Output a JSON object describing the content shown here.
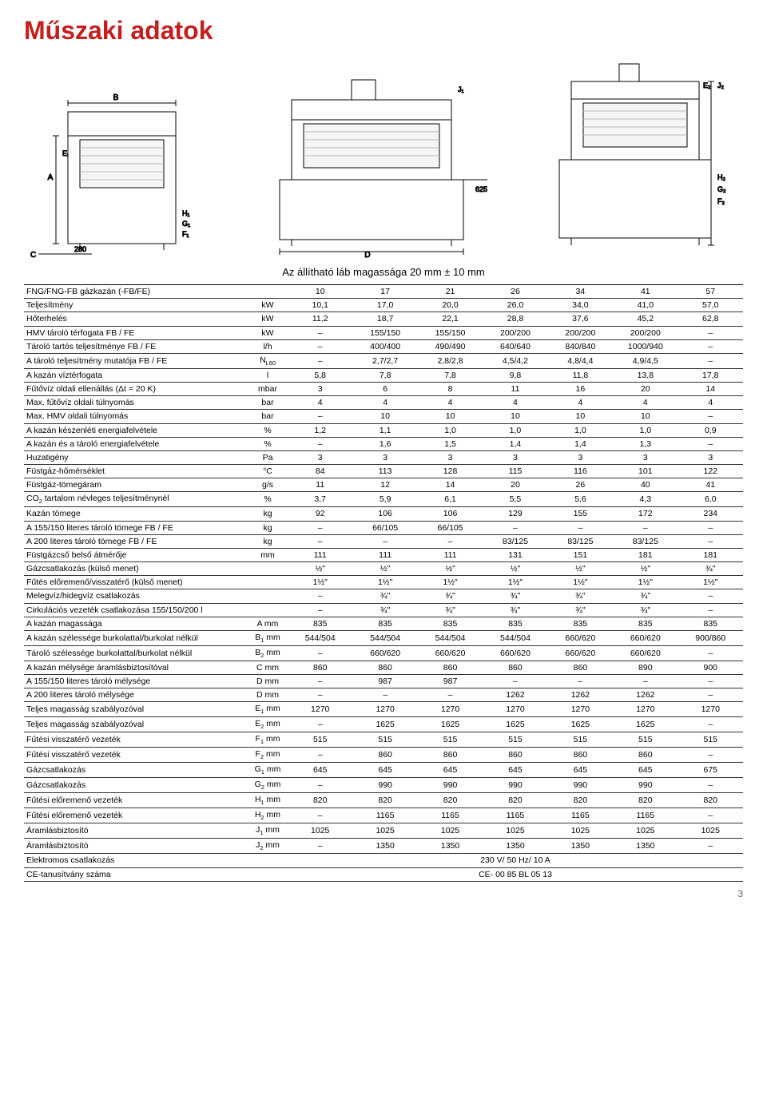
{
  "title": "Műszaki adatok",
  "caption": "Az állítható láb magassága 20 mm ± 10 mm",
  "page_number": "3",
  "diagram_labels": {
    "left": {
      "A": "A",
      "B": "B",
      "C": "C",
      "E1": "E₁",
      "G1": "G₁",
      "H1": "H₁",
      "F1": "F₁",
      "val280": "280"
    },
    "mid": {
      "D": "D",
      "J1": "J₁",
      "val625": "625"
    },
    "right": {
      "E2": "E₂",
      "J2": "J₂",
      "H2": "H₂",
      "G2": "G₂",
      "F2": "F₂"
    }
  },
  "header_row": [
    "FNG/FNG-FB gázkazán (-FB/FE)",
    "",
    "10",
    "17",
    "21",
    "26",
    "34",
    "41",
    "57"
  ],
  "rows": [
    [
      "Teljesítmény",
      "kW",
      "10,1",
      "17,0",
      "20,0",
      "26,0",
      "34,0",
      "41,0",
      "57,0"
    ],
    [
      "Hőterhelés",
      "kW",
      "11,2",
      "18,7",
      "22,1",
      "28,8",
      "37,6",
      "45,2",
      "62,8"
    ],
    [
      "HMV tároló térfogata FB / FE",
      "kW",
      "–",
      "155/150",
      "155/150",
      "200/200",
      "200/200",
      "200/200",
      "–"
    ],
    [
      "Tároló tartós teljesítménye FB / FE",
      "l/h",
      "–",
      "400/400",
      "490/490",
      "640/640",
      "840/840",
      "1000/940",
      "–"
    ],
    [
      "A tároló teljesítmény mutatója FB / FE",
      "N<sub>L60</sub>",
      "–",
      "2,7/2,7",
      "2,8/2,8",
      "4,5/4,2",
      "4,8/4,4",
      "4,9/4,5",
      "–"
    ],
    [
      "A kazán víztérfogata",
      "l",
      "5,8",
      "7,8",
      "7,8",
      "9,8",
      "11,8",
      "13,8",
      "17,8"
    ],
    [
      "Fűtővíz oldali ellenállás (Δt = 20 K)",
      "mbar",
      "3",
      "6",
      "8",
      "11",
      "16",
      "20",
      "14"
    ],
    [
      "Max. fűtővíz oldali túlnyomás",
      "bar",
      "4",
      "4",
      "4",
      "4",
      "4",
      "4",
      "4"
    ],
    [
      "Max. HMV oldali túlnyomás",
      "bar",
      "–",
      "10",
      "10",
      "10",
      "10",
      "10",
      "–"
    ],
    [
      "A kazán készenléti energiafelvétele",
      "%",
      "1,2",
      "1,1",
      "1,0",
      "1,0",
      "1,0",
      "1,0",
      "0,9"
    ],
    [
      "A kazán és a tároló energiafelvétele",
      "%",
      "–",
      "1,6",
      "1,5",
      "1,4",
      "1,4",
      "1,3",
      "–"
    ],
    [
      "Huzatigény",
      "Pa",
      "3",
      "3",
      "3",
      "3",
      "3",
      "3",
      "3"
    ],
    [
      "Füstgáz-hőmérséklet",
      "°C",
      "84",
      "113",
      "128",
      "115",
      "116",
      "101",
      "122"
    ],
    [
      "Füstgáz-tömegáram",
      "g/s",
      "11",
      "12",
      "14",
      "20",
      "26",
      "40",
      "41"
    ],
    [
      "CO<sub>2</sub> tartalom névleges teljesítménynél",
      "%",
      "3,7",
      "5,9",
      "6,1",
      "5,5",
      "5,6",
      "4,3",
      "6,0"
    ],
    [
      "Kazán tömege",
      "kg",
      "92",
      "106",
      "106",
      "129",
      "155",
      "172",
      "234"
    ],
    [
      "A 155/150 literes tároló tömege FB / FE",
      "kg",
      "–",
      "66/105",
      "66/105",
      "–",
      "–",
      "–",
      "–"
    ],
    [
      "A 200 literes tároló tömege FB / FE",
      "kg",
      "–",
      "–",
      "–",
      "83/125",
      "83/125",
      "83/125",
      "–"
    ],
    [
      "Füstgázcső belső átmérője",
      "mm",
      "111",
      "111",
      "111",
      "131",
      "151",
      "181",
      "181"
    ],
    [
      "Gázcsatlakozás (külső menet)",
      "",
      "½\"",
      "½\"",
      "½\"",
      "½\"",
      "½\"",
      "½\"",
      "¾\""
    ],
    [
      "Fűtés előremenő/visszatérő (külső menet)",
      "",
      "1½\"",
      "1½\"",
      "1½\"",
      "1½\"",
      "1½\"",
      "1½\"",
      "1½\""
    ],
    [
      "Melegvíz/hidegvíz csatlakozás",
      "",
      "–",
      "¾\"",
      "¾\"",
      "¾\"",
      "¾\"",
      "¾\"",
      "–"
    ],
    [
      "Cirkulációs vezeték csatlakozása 155/150/200 l",
      "",
      "–",
      "¾\"",
      "¾\"",
      "¾\"",
      "¾\"",
      "¾\"",
      "–"
    ],
    [
      "A kazán magassága",
      "A mm",
      "835",
      "835",
      "835",
      "835",
      "835",
      "835",
      "835"
    ],
    [
      "A kazán szélessége burkolattal/burkolat nélkül",
      "B<sub>1</sub> mm",
      "544/504",
      "544/504",
      "544/504",
      "544/504",
      "660/620",
      "660/620",
      "900/860"
    ],
    [
      "Tároló szélessége burkolattal/burkolat nélkül",
      "B<sub>2</sub> mm",
      "–",
      "660/620",
      "660/620",
      "660/620",
      "660/620",
      "660/620",
      "–"
    ],
    [
      "A kazán mélysége áramlásbiztosítóval",
      "C mm",
      "860",
      "860",
      "860",
      "860",
      "860",
      "890",
      "900"
    ],
    [
      "A 155/150 literes tároló mélysége",
      "D mm",
      "–",
      "987",
      "987",
      "–",
      "–",
      "–",
      "–"
    ],
    [
      "A 200 literes tároló mélysége",
      "D mm",
      "–",
      "–",
      "–",
      "1262",
      "1262",
      "1262",
      "–"
    ],
    [
      "Teljes magasság szabályozóval",
      "E<sub>1</sub> mm",
      "1270",
      "1270",
      "1270",
      "1270",
      "1270",
      "1270",
      "1270"
    ],
    [
      "Teljes magasság szabályozóval",
      "E<sub>2</sub> mm",
      "–",
      "1625",
      "1625",
      "1625",
      "1625",
      "1625",
      "–"
    ],
    [
      "Fűtési visszatérő vezeték",
      "F<sub>1</sub> mm",
      "515",
      "515",
      "515",
      "515",
      "515",
      "515",
      "515"
    ],
    [
      "Fűtési visszatérő vezeték",
      "F<sub>2</sub> mm",
      "–",
      "860",
      "860",
      "860",
      "860",
      "860",
      "–"
    ],
    [
      "Gázcsatlakozás",
      "G<sub>1</sub> mm",
      "645",
      "645",
      "645",
      "645",
      "645",
      "645",
      "675"
    ],
    [
      "Gázcsatlakozás",
      "G<sub>2</sub> mm",
      "–",
      "990",
      "990",
      "990",
      "990",
      "990",
      "–"
    ],
    [
      "Fűtési előremenő vezeték",
      "H<sub>1</sub> mm",
      "820",
      "820",
      "820",
      "820",
      "820",
      "820",
      "820"
    ],
    [
      "Fűtési előremenő vezeték",
      "H<sub>2</sub> mm",
      "–",
      "1165",
      "1165",
      "1165",
      "1165",
      "1165",
      "–"
    ],
    [
      "Áramlásbiztosító",
      "J<sub>1</sub> mm",
      "1025",
      "1025",
      "1025",
      "1025",
      "1025",
      "1025",
      "1025"
    ],
    [
      "Áramlásbiztosító",
      "J<sub>2</sub> mm",
      "–",
      "1350",
      "1350",
      "1350",
      "1350",
      "1350",
      "–"
    ],
    [
      "Elektromos csatlakozás",
      "",
      "",
      "",
      "",
      "230 V/ 50 Hz/ 10 A",
      "",
      "",
      ""
    ],
    [
      "CE-tanusítvány száma",
      "",
      "",
      "",
      "",
      "CE- 00 85 BL 05 13",
      "",
      "",
      ""
    ]
  ],
  "styling": {
    "title_color": "#c41e1e",
    "title_fontsize": 32,
    "body_fontsize": 10.5,
    "border_color": "#333",
    "background": "#ffffff",
    "diagram_fill": "#f5f5f5",
    "diagram_stroke": "#000000",
    "diagram_grid": "#cccccc"
  }
}
